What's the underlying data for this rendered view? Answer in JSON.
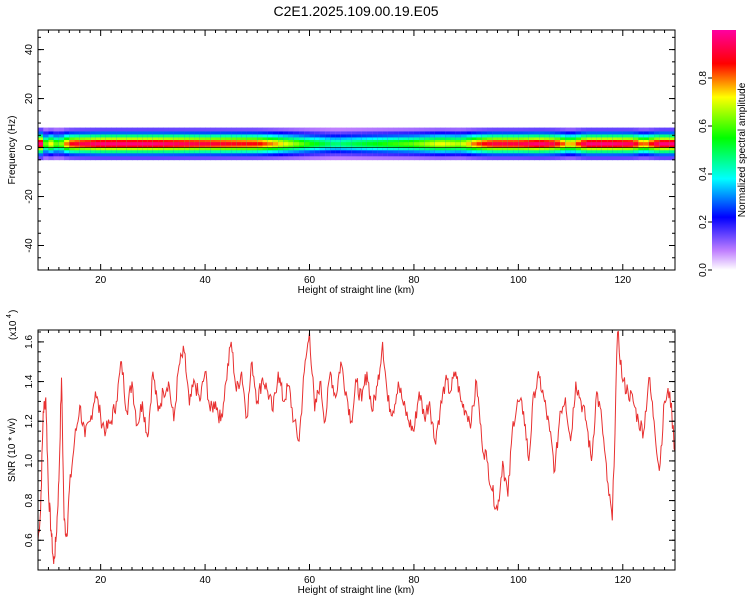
{
  "title": "C2E1.2025.109.00.19.E05",
  "colors": {
    "snr_line": "#e83030",
    "axis": "#000000",
    "background": "#ffffff"
  },
  "colorbar": {
    "label": "Normalized spectral amplitude",
    "ticks": [
      "0.0",
      "0.2",
      "0.4",
      "0.6",
      "0.8"
    ],
    "tick_values": [
      0.0,
      0.2,
      0.4,
      0.6,
      0.8
    ],
    "range": [
      0.0,
      1.0
    ]
  },
  "chart_data": [
    {
      "type": "heatmap",
      "name": "spectrogram",
      "xlabel": "Height of straight line (km)",
      "ylabel": "Frequency (Hz)",
      "xlim": [
        8,
        130
      ],
      "ylim": [
        -50,
        48
      ],
      "xticks": [
        20,
        40,
        60,
        80,
        100,
        120
      ],
      "yticks": [
        40,
        20,
        0,
        -20,
        -40
      ],
      "ytick_labels": [
        "40",
        "20",
        "0",
        "-20",
        "-40"
      ],
      "center_frequency": 1.5,
      "band_halfwidth": 3.5,
      "band_profile": {
        "x": [
          9,
          10,
          12,
          14,
          16,
          20,
          30,
          40,
          50,
          60,
          65,
          70,
          75,
          80,
          85,
          89,
          92,
          95,
          100,
          104,
          107,
          110,
          113,
          118,
          122,
          124,
          127,
          130
        ],
        "amplitude": [
          0.45,
          0.75,
          0.55,
          0.85,
          0.9,
          0.95,
          0.95,
          0.9,
          0.85,
          0.55,
          0.45,
          0.5,
          0.55,
          0.6,
          0.7,
          0.65,
          0.8,
          0.9,
          0.9,
          0.95,
          0.9,
          0.7,
          0.95,
          0.95,
          0.92,
          0.75,
          0.95,
          0.95
        ]
      }
    },
    {
      "type": "line",
      "name": "snr",
      "xlabel": "Height of straight line (km)",
      "ylabel": "SNR (10 * v/v)",
      "yscale_label": "(x10",
      "yscale_exp": "4",
      "xlim": [
        8,
        130
      ],
      "ylim": [
        0.45,
        1.66
      ],
      "xticks": [
        20,
        40,
        60,
        80,
        100,
        120
      ],
      "yticks": [
        0.6,
        0.8,
        1.0,
        1.2,
        1.4,
        1.6
      ],
      "ytick_labels": [
        "0.6",
        "0.8",
        "1.0",
        "1.2",
        "1.4",
        "1.6"
      ],
      "series": [
        {
          "x": [
            8,
            8.5,
            9,
            9.5,
            10,
            10.5,
            11,
            11.5,
            12,
            12.5,
            13,
            13.5,
            14,
            15,
            16,
            17,
            18,
            19,
            20,
            21,
            22,
            23,
            24,
            25,
            26,
            27,
            28,
            29,
            30,
            31,
            32,
            33,
            34,
            35,
            36,
            37,
            38,
            39,
            40,
            41,
            42,
            43,
            44,
            45,
            46,
            47,
            48,
            49,
            50,
            51,
            52,
            53,
            54,
            55,
            56,
            57,
            58,
            59,
            60,
            61,
            62,
            63,
            64,
            65,
            66,
            67,
            68,
            69,
            70,
            71,
            72,
            73,
            74,
            75,
            76,
            77,
            78,
            79,
            80,
            81,
            82,
            83,
            84,
            85,
            86,
            87,
            88,
            89,
            90,
            91,
            92,
            93,
            94,
            95,
            96,
            97,
            98,
            99,
            100,
            101,
            102,
            103,
            104,
            105,
            106,
            107,
            108,
            109,
            110,
            111,
            112,
            113,
            114,
            115,
            116,
            117,
            118,
            119,
            120,
            121,
            122,
            123,
            124,
            125,
            126,
            127,
            128,
            129,
            130
          ],
          "y": [
            0.6,
            0.75,
            1.25,
            1.32,
            0.85,
            0.65,
            0.48,
            0.62,
            0.9,
            1.42,
            0.7,
            0.62,
            0.85,
            1.1,
            1.28,
            1.12,
            1.2,
            1.35,
            1.22,
            1.15,
            1.2,
            1.3,
            1.5,
            1.25,
            1.4,
            1.18,
            1.3,
            1.12,
            1.45,
            1.25,
            1.35,
            1.4,
            1.2,
            1.48,
            1.55,
            1.28,
            1.4,
            1.3,
            1.45,
            1.25,
            1.3,
            1.2,
            1.4,
            1.6,
            1.35,
            1.45,
            1.22,
            1.5,
            1.3,
            1.42,
            1.35,
            1.25,
            1.45,
            1.3,
            1.38,
            1.2,
            1.1,
            1.45,
            1.65,
            1.25,
            1.4,
            1.2,
            1.45,
            1.32,
            1.5,
            1.35,
            1.2,
            1.4,
            1.3,
            1.45,
            1.25,
            1.38,
            1.6,
            1.3,
            1.25,
            1.4,
            1.28,
            1.2,
            1.15,
            1.35,
            1.22,
            1.3,
            1.1,
            1.25,
            1.4,
            1.35,
            1.45,
            1.3,
            1.25,
            1.2,
            1.4,
            1.1,
            1.0,
            0.85,
            0.75,
            1.0,
            0.82,
            1.2,
            1.3,
            1.25,
            1.0,
            1.35,
            1.42,
            1.3,
            1.15,
            0.95,
            1.25,
            1.32,
            1.1,
            1.4,
            1.3,
            1.2,
            1.0,
            1.35,
            1.2,
            0.9,
            0.7,
            1.65,
            1.4,
            1.35,
            1.3,
            1.2,
            1.15,
            1.42,
            1.2,
            0.95,
            1.3,
            1.35,
            1.05
          ]
        }
      ]
    }
  ]
}
